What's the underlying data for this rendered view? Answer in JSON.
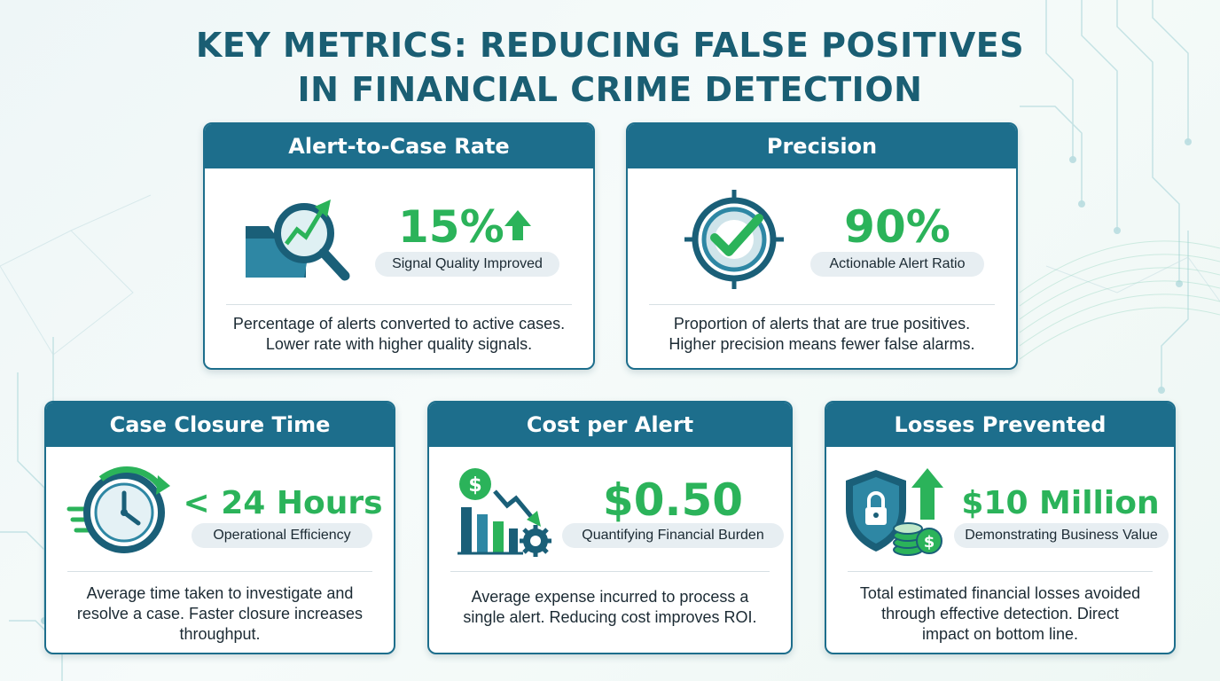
{
  "title": {
    "line1": "KEY METRICS: REDUCING FALSE POSITIVES",
    "line2": "IN FINANCIAL CRIME DETECTION"
  },
  "colors": {
    "header_blue": "#1d6e8c",
    "accent_green": "#2bb35a",
    "title_color": "#1a5e73",
    "badge_bg": "#e7eef2"
  },
  "cards": {
    "alert_to_case": {
      "header": "Alert-to-Case Rate",
      "value": "15%",
      "badge": "Signal Quality Improved",
      "desc_line1": "Percentage of alerts converted to active cases.",
      "desc_line2": "Lower rate with higher quality signals.",
      "icon": "magnifier-chart-folder-icon"
    },
    "precision": {
      "header": "Precision",
      "value": "90%",
      "badge": "Actionable Alert Ratio",
      "desc_line1": "Proportion of alerts that are true positives.",
      "desc_line2": "Higher precision means fewer false alarms.",
      "icon": "target-check-icon"
    },
    "case_closure": {
      "header": "Case Closure Time",
      "value": "< 24 Hours",
      "badge": "Operational Efficiency",
      "desc_line1": "Average time taken to investigate and",
      "desc_line2": "resolve a case. Faster closure increases",
      "desc_line3": "throughput.",
      "icon": "stopwatch-icon"
    },
    "cost_per_alert": {
      "header": "Cost per Alert",
      "value": "$0.50",
      "badge": "Quantifying Financial Burden",
      "desc_line1": "Average expense incurred to process a",
      "desc_line2": "single alert. Reducing cost improves ROI.",
      "icon": "cost-chart-gear-icon"
    },
    "losses_prevented": {
      "header": "Losses Prevented",
      "value": "$10 Million",
      "badge": "Demonstrating Business Value",
      "desc_line1": "Total estimated financial losses avoided",
      "desc_line2": "through effective detection. Direct",
      "desc_line3": "impact on bottom line.",
      "icon": "shield-lock-coins-icon"
    }
  }
}
